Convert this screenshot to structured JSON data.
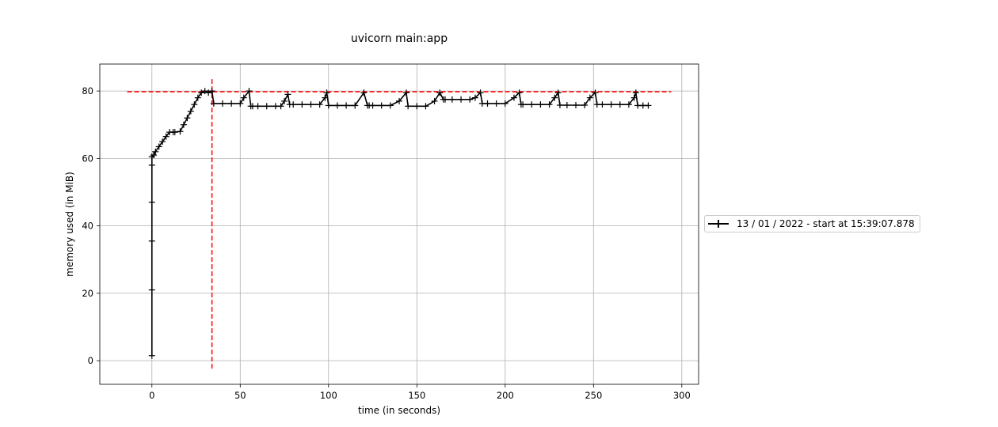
{
  "chart_data": {
    "type": "line",
    "title": "uvicorn main:app",
    "xlabel": "time (in seconds)",
    "ylabel": "memory used (in MiB)",
    "xlim": [
      -29.5,
      309.5
    ],
    "ylim": [
      -7,
      88
    ],
    "xticks": [
      0,
      50,
      100,
      150,
      200,
      250,
      300
    ],
    "yticks": [
      0,
      20,
      40,
      60,
      80
    ],
    "grid": true,
    "legend_position": "right",
    "series": [
      {
        "name": "13 / 01 / 2022 - start at 15:39:07.878",
        "color": "#000000",
        "marker": "+",
        "x": [
          0,
          0,
          0,
          0,
          0,
          0,
          1,
          2,
          4,
          6,
          8,
          10,
          12,
          13,
          16,
          18,
          20,
          22,
          24,
          26,
          28,
          30,
          32,
          34,
          35,
          40,
          45,
          50,
          52,
          55,
          56,
          57,
          60,
          65,
          70,
          73,
          75,
          77,
          78,
          80,
          85,
          90,
          95,
          98,
          99,
          100,
          105,
          110,
          115,
          120,
          122,
          123,
          125,
          130,
          135,
          140,
          144,
          145,
          150,
          155,
          160,
          163,
          165,
          166,
          170,
          175,
          180,
          183,
          186,
          187,
          190,
          195,
          200,
          205,
          208,
          209,
          210,
          215,
          220,
          225,
          228,
          230,
          231,
          235,
          240,
          245,
          248,
          251,
          252,
          255,
          260,
          265,
          270,
          273,
          274,
          275,
          278,
          281
        ],
        "y": [
          1.5,
          21,
          35.5,
          47,
          58,
          60.5,
          61,
          62,
          63.5,
          65,
          66.5,
          67.8,
          67.8,
          67.8,
          68,
          70,
          72,
          74,
          76,
          78,
          79.5,
          80,
          79.5,
          80,
          76.3,
          76.3,
          76.3,
          76.3,
          78,
          80,
          75.5,
          75.5,
          75.5,
          75.5,
          75.5,
          75.5,
          77,
          79,
          76,
          76,
          76,
          76,
          76,
          78,
          79.5,
          75.7,
          75.7,
          75.7,
          75.7,
          79.5,
          75.7,
          75.7,
          75.7,
          75.7,
          75.7,
          77,
          79.5,
          75.5,
          75.5,
          75.5,
          77,
          79.5,
          77.5,
          77.5,
          77.5,
          77.5,
          77.5,
          78,
          79.5,
          76.3,
          76.3,
          76.3,
          76.3,
          78,
          79.5,
          76,
          76,
          76,
          76,
          76,
          78,
          79.5,
          75.8,
          75.8,
          75.8,
          75.8,
          78,
          79.5,
          76,
          76,
          76,
          76,
          76,
          78,
          79.5,
          75.7,
          75.7,
          75.7
        ]
      }
    ],
    "annotations": [
      {
        "type": "hline",
        "y": 79.8,
        "x_range": [
          -14,
          294
        ],
        "color": "#ff0000",
        "style": "dashed"
      },
      {
        "type": "vline",
        "x": 34,
        "y_range": [
          -2.5,
          83.5
        ],
        "color": "#ff0000",
        "style": "dashed"
      }
    ]
  }
}
